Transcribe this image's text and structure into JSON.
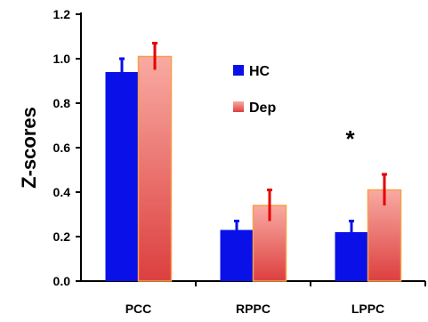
{
  "chart_data": {
    "type": "bar",
    "title": "",
    "xlabel": "",
    "ylabel": "Z-scores",
    "ylim": [
      0,
      1.2
    ],
    "yticks": [
      "0.0",
      "0.2",
      "0.4",
      "0.6",
      "0.8",
      "1.0",
      "1.2"
    ],
    "categories": [
      "PCC",
      "RPPC",
      "LPPC"
    ],
    "series": [
      {
        "name": "HC",
        "values": [
          0.94,
          0.23,
          0.22
        ],
        "errors": [
          0.06,
          0.04,
          0.05
        ],
        "color": "#0a10e8",
        "error_color": "#0a10e8"
      },
      {
        "name": "Dep",
        "values": [
          1.01,
          0.34,
          0.41
        ],
        "errors": [
          0.06,
          0.07,
          0.07
        ],
        "color": "#f4857a",
        "edge_color": "#f5a04a",
        "error_color": "#e60000"
      }
    ],
    "legend_position": "upper-center",
    "annotations": [
      {
        "text": "*",
        "category": "LPPC"
      }
    ],
    "grid": false
  }
}
